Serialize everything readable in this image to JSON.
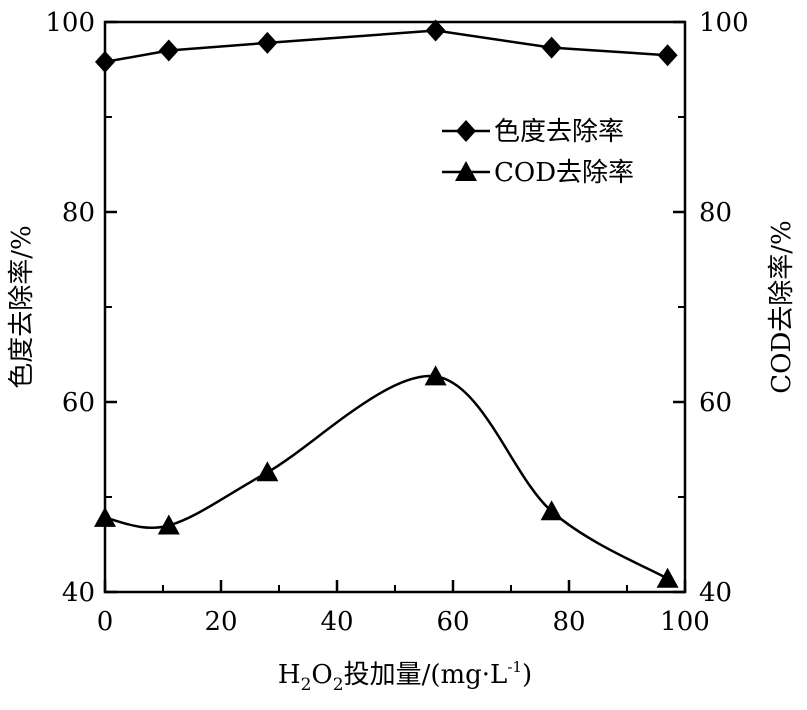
{
  "chart_data": {
    "type": "line",
    "xlabel": {
      "prefix": "H",
      "sub1": "2",
      "mid": "O",
      "sub2": "2",
      "suffix": "投加量/(mg·L",
      "sup": "-1",
      "end": ")"
    },
    "ylabel_left": "色度去除率/%",
    "ylabel_right": "COD去除率/%",
    "xlim": [
      0,
      100
    ],
    "ylim": [
      40,
      100
    ],
    "x_ticks": [
      "0",
      "20",
      "40",
      "60",
      "80",
      "100"
    ],
    "y_ticks": [
      "40",
      "60",
      "80",
      "100"
    ],
    "legend_position": "top-right",
    "series": [
      {
        "name": "色度去除率",
        "marker": "diamond",
        "axis": "left",
        "color": "#000000",
        "x": [
          0,
          11,
          28,
          57,
          77,
          97
        ],
        "y": [
          95.8,
          97.0,
          97.8,
          99.1,
          97.3,
          96.5
        ]
      },
      {
        "name": "COD去除率",
        "marker": "triangle",
        "axis": "right",
        "color": "#000000",
        "x": [
          0,
          11,
          28,
          57,
          77,
          97
        ],
        "y": [
          47.8,
          47.0,
          52.6,
          62.7,
          48.5,
          41.4
        ]
      }
    ]
  }
}
